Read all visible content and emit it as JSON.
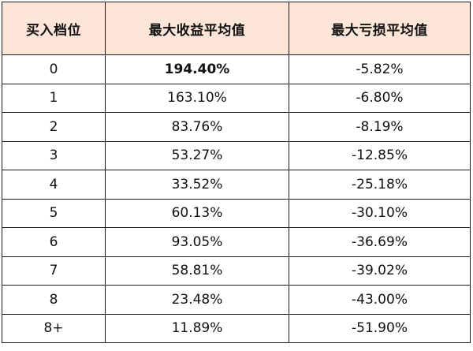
{
  "table": {
    "headers": [
      "买入档位",
      "最大收益平均值",
      "最大亏损平均值"
    ],
    "header_bg": "#fde5d8",
    "rows": [
      {
        "level": "0",
        "max_gain": "194.40%",
        "max_loss": "-5.82%"
      },
      {
        "level": "1",
        "max_gain": "163.10%",
        "max_loss": "-6.80%"
      },
      {
        "level": "2",
        "max_gain": "83.76%",
        "max_loss": "-8.19%"
      },
      {
        "level": "3",
        "max_gain": "53.27%",
        "max_loss": "-12.85%"
      },
      {
        "level": "4",
        "max_gain": "33.52%",
        "max_loss": "-25.18%"
      },
      {
        "level": "5",
        "max_gain": "60.13%",
        "max_loss": "-30.10%"
      },
      {
        "level": "6",
        "max_gain": "93.05%",
        "max_loss": "-36.69%"
      },
      {
        "level": "7",
        "max_gain": "58.81%",
        "max_loss": "-39.02%"
      },
      {
        "level": "8",
        "max_gain": "23.48%",
        "max_loss": "-43.00%"
      },
      {
        "level": "8+",
        "max_gain": "11.89%",
        "max_loss": "-51.90%"
      }
    ]
  }
}
